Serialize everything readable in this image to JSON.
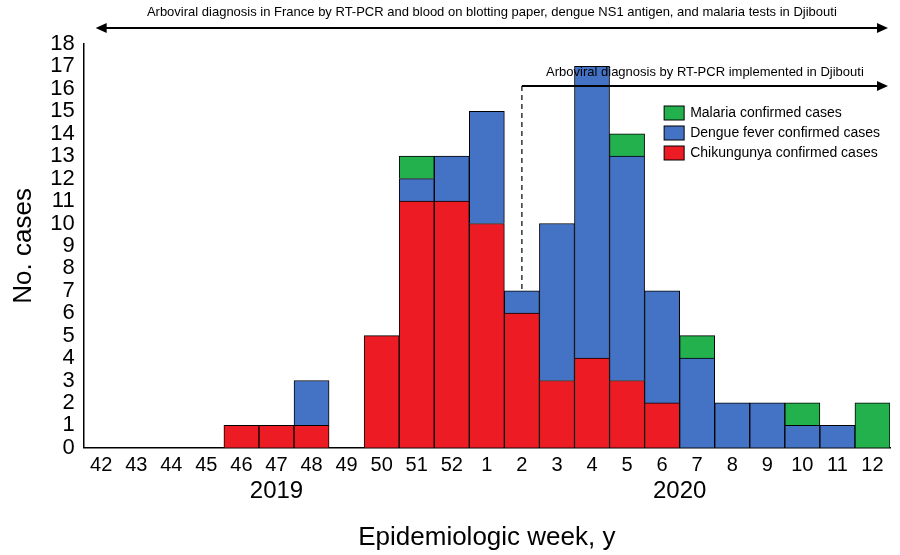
{
  "chart_data": {
    "type": "bar",
    "stacked": true,
    "x_label": "Epidemiologic week, y",
    "y_label": "No. cases",
    "categories": [
      "42",
      "43",
      "44",
      "45",
      "46",
      "47",
      "48",
      "49",
      "50",
      "51",
      "52",
      "1",
      "2",
      "3",
      "4",
      "5",
      "6",
      "7",
      "8",
      "9",
      "10",
      "11",
      "12"
    ],
    "years": [
      {
        "label": "2019",
        "start": "42",
        "end": "52"
      },
      {
        "label": "2020",
        "start": "1",
        "end": "12"
      }
    ],
    "series": [
      {
        "name": "Chikungunya confirmed cases",
        "color": "#ed1c24",
        "values": [
          0,
          0,
          0,
          0,
          1,
          1,
          1,
          0,
          5,
          11,
          11,
          10,
          6,
          3,
          4,
          3,
          2,
          0,
          0,
          0,
          0,
          0,
          0
        ]
      },
      {
        "name": "Dengue fever confirmed cases",
        "color": "#4472c4",
        "values": [
          0,
          0,
          0,
          0,
          0,
          0,
          2,
          0,
          0,
          1,
          2,
          5,
          1,
          7,
          13,
          10,
          5,
          4,
          2,
          2,
          1,
          1,
          0
        ]
      },
      {
        "name": "Malaria confirmed cases",
        "color": "#22b14c",
        "values": [
          0,
          0,
          0,
          0,
          0,
          0,
          0,
          0,
          0,
          1,
          0,
          0,
          0,
          0,
          0,
          1,
          0,
          1,
          0,
          0,
          1,
          0,
          2
        ]
      }
    ],
    "annotations": [
      {
        "text": "Arboviral diagnosis in France by RT-PCR and blood on blotting paper, dengue NS1 antigen, and malaria tests in Djibouti",
        "start": "42",
        "end": "12"
      },
      {
        "text": "Arboviral diagnosis by RT-PCR implemented in Djibouti",
        "start": "2",
        "end": "12"
      }
    ],
    "ylim": [
      0,
      18
    ],
    "yticks": [
      0,
      1,
      2,
      3,
      4,
      5,
      6,
      7,
      8,
      9,
      10,
      11,
      12,
      13,
      14,
      15,
      16,
      17,
      18
    ],
    "grid": false,
    "legend": "upper right"
  }
}
